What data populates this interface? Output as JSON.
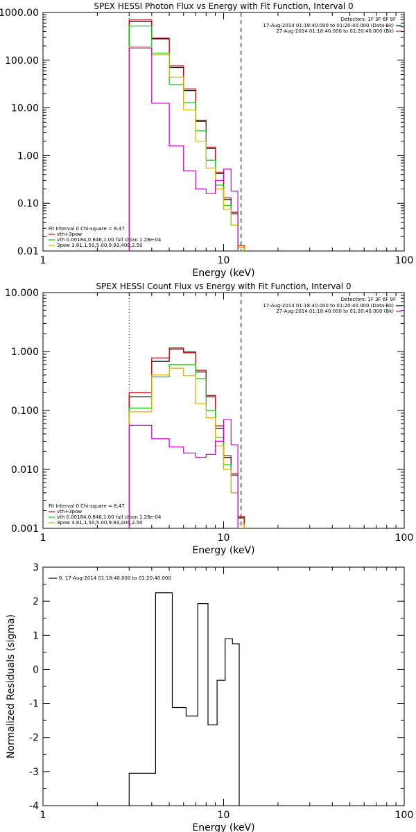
{
  "chart_data": [
    {
      "type": "line",
      "title": "SPEX HESSI Photon Flux vs Energy with Fit Function, Interval 0",
      "xlabel": "Energy (keV)",
      "ylabel": "",
      "xscale": "log",
      "yscale": "log",
      "xlim": [
        1,
        100
      ],
      "ylim": [
        0.01,
        1000
      ],
      "x_ticks": [
        1,
        10,
        100
      ],
      "x_tick_labels": [
        "1",
        "10",
        "100"
      ],
      "y_ticks": [
        0.01,
        0.1,
        1,
        10,
        100,
        1000
      ],
      "y_tick_labels": [
        "0.01",
        "0.10",
        "1.00",
        "10.00",
        "100.00",
        "1000.00"
      ],
      "vlines": [
        {
          "x": 3.0,
          "style": "dotted"
        },
        {
          "x": 12.5,
          "style": "dashed"
        }
      ],
      "legend_top_right": {
        "header": "Detectors: 1F 3F 6F 9F",
        "entries": [
          {
            "label": "17-Aug-2014 01:18:40.000 to 01:20:40.000 (Data-Bk)",
            "color": "#000000"
          },
          {
            "label": "27-Aug-2014 01:18:40.000 to 01:20:40.000 (Bk)",
            "color": "#cc00cc"
          }
        ]
      },
      "legend_bottom_left": {
        "header": "Fit Interval 0   Chi-square = 8.47",
        "entries": [
          {
            "label": "vth+3pow",
            "color": "#d00000"
          },
          {
            "label": "vth 0.00184,0.846,1.00   full chian 1.28e-04",
            "color": "#00cc00"
          },
          {
            "label": "3pow 3.81,1.50,5.00,9.93,400,2.50",
            "color": "#e0b000"
          }
        ]
      },
      "bin_edges": [
        3.0,
        4.0,
        5.0,
        6.0,
        7.0,
        8.0,
        9.0,
        10.0,
        11.0,
        12.0,
        13.0
      ],
      "series": [
        {
          "name": "Data-Bk",
          "color": "#000000",
          "values": [
            650,
            280,
            70,
            23,
            5.2,
            1.4,
            0.42,
            0.12,
            0.06,
            0.012
          ]
        },
        {
          "name": "vth+3pow",
          "color": "#d00000",
          "values": [
            700,
            290,
            76,
            25,
            5.5,
            1.5,
            0.45,
            0.13,
            0.065,
            0.013
          ]
        },
        {
          "name": "vth",
          "color": "#00cc00",
          "values": [
            520,
            140,
            31,
            13,
            3.3,
            0.8,
            0.24,
            0.09,
            0.035,
            0.007
          ]
        },
        {
          "name": "3pow",
          "color": "#e0b000",
          "values": [
            190,
            130,
            44,
            9.0,
            2.0,
            0.55,
            0.2,
            0.075,
            0.035,
            0.012
          ]
        },
        {
          "name": "Bk",
          "color": "#cc00cc",
          "values": [
            180,
            12.5,
            1.6,
            0.48,
            0.2,
            0.16,
            0.3,
            0.52,
            0.18,
            null
          ]
        }
      ]
    },
    {
      "type": "line",
      "title": "SPEX HESSI Count Flux vs Energy with Fit Function, Interval 0",
      "xlabel": "Energy (keV)",
      "ylabel": "",
      "xscale": "log",
      "yscale": "log",
      "xlim": [
        1,
        100
      ],
      "ylim": [
        0.001,
        10
      ],
      "x_ticks": [
        1,
        10,
        100
      ],
      "x_tick_labels": [
        "1",
        "10",
        "100"
      ],
      "y_ticks": [
        0.001,
        0.01,
        0.1,
        1,
        10
      ],
      "y_tick_labels": [
        "0.001",
        "0.010",
        "0.100",
        "1.000",
        "10.000"
      ],
      "vlines": [
        {
          "x": 3.0,
          "style": "dotted"
        },
        {
          "x": 12.5,
          "style": "dashed"
        }
      ],
      "legend_top_right": {
        "header": "Detectors: 1F 3F 6F 9F",
        "entries": [
          {
            "label": "17-Aug-2014 01:18:40.000 to 01:20:40.000 (Data-Bk)",
            "color": "#000000"
          },
          {
            "label": "27-Aug-2014 01:18:40.000 to 01:20:40.000 (Bk)",
            "color": "#cc00cc"
          }
        ]
      },
      "legend_bottom_left": {
        "header": "Fit Interval 0   Chi-square = 8.47",
        "entries": [
          {
            "label": "vth+3pow",
            "color": "#d00000"
          },
          {
            "label": "vth 0.00184,0.846,1.00   full chian 1.28e-04",
            "color": "#00cc00"
          },
          {
            "label": "3pow 3.81,1.50,5.00,9.93,400,2.50",
            "color": "#e0b000"
          }
        ]
      },
      "bin_edges": [
        3.0,
        4.0,
        5.0,
        6.0,
        7.0,
        8.0,
        9.0,
        10.0,
        11.0,
        12.0,
        13.0
      ],
      "series": [
        {
          "name": "Data-Bk",
          "color": "#000000",
          "values": [
            0.17,
            0.68,
            1.1,
            0.98,
            0.45,
            0.17,
            0.05,
            0.016,
            0.008,
            0.0015
          ]
        },
        {
          "name": "vth+3pow",
          "color": "#d00000",
          "values": [
            0.2,
            0.78,
            1.15,
            0.95,
            0.48,
            0.18,
            0.055,
            0.017,
            0.0085,
            0.0016
          ]
        },
        {
          "name": "vth",
          "color": "#00cc00",
          "values": [
            0.11,
            0.37,
            0.6,
            0.6,
            0.35,
            0.1,
            0.035,
            0.012,
            0.004,
            0.0009
          ]
        },
        {
          "name": "3pow",
          "color": "#e0b000",
          "values": [
            0.095,
            0.4,
            0.52,
            0.39,
            0.13,
            0.075,
            0.025,
            0.01,
            0.004,
            0.0012
          ]
        },
        {
          "name": "Bk",
          "color": "#cc00cc",
          "values": [
            0.056,
            0.033,
            0.024,
            0.019,
            0.016,
            0.018,
            0.03,
            0.07,
            0.026,
            null
          ]
        }
      ]
    },
    {
      "type": "line",
      "title": "",
      "xlabel": "Energy (keV)",
      "ylabel": "Normalized Residuals (sigma)",
      "xscale": "log",
      "yscale": "linear",
      "xlim": [
        1,
        100
      ],
      "ylim": [
        -4,
        3
      ],
      "x_ticks": [
        1,
        10,
        100
      ],
      "x_tick_labels": [
        "1",
        "10",
        "100"
      ],
      "y_ticks": [
        -4,
        -3,
        -2,
        -1,
        0,
        1,
        2,
        3
      ],
      "y_tick_labels": [
        "-4",
        "-3",
        "-2",
        "-1",
        "0",
        "1",
        "2",
        "3"
      ],
      "legend_top_left": {
        "entries": [
          {
            "label": "0. 17-Aug-2014 01:18:40.000 to 01:20:40.000",
            "color": "#000000"
          }
        ]
      },
      "bin_edges": [
        3.0,
        4.2,
        5.2,
        6.2,
        7.2,
        8.2,
        9.2,
        10.2,
        11.2,
        12.2
      ],
      "series": [
        {
          "name": "residuals",
          "color": "#000000",
          "values": [
            -3.05,
            2.25,
            -1.12,
            -1.37,
            1.93,
            -1.63,
            -0.32,
            0.9,
            0.75
          ]
        }
      ]
    }
  ]
}
